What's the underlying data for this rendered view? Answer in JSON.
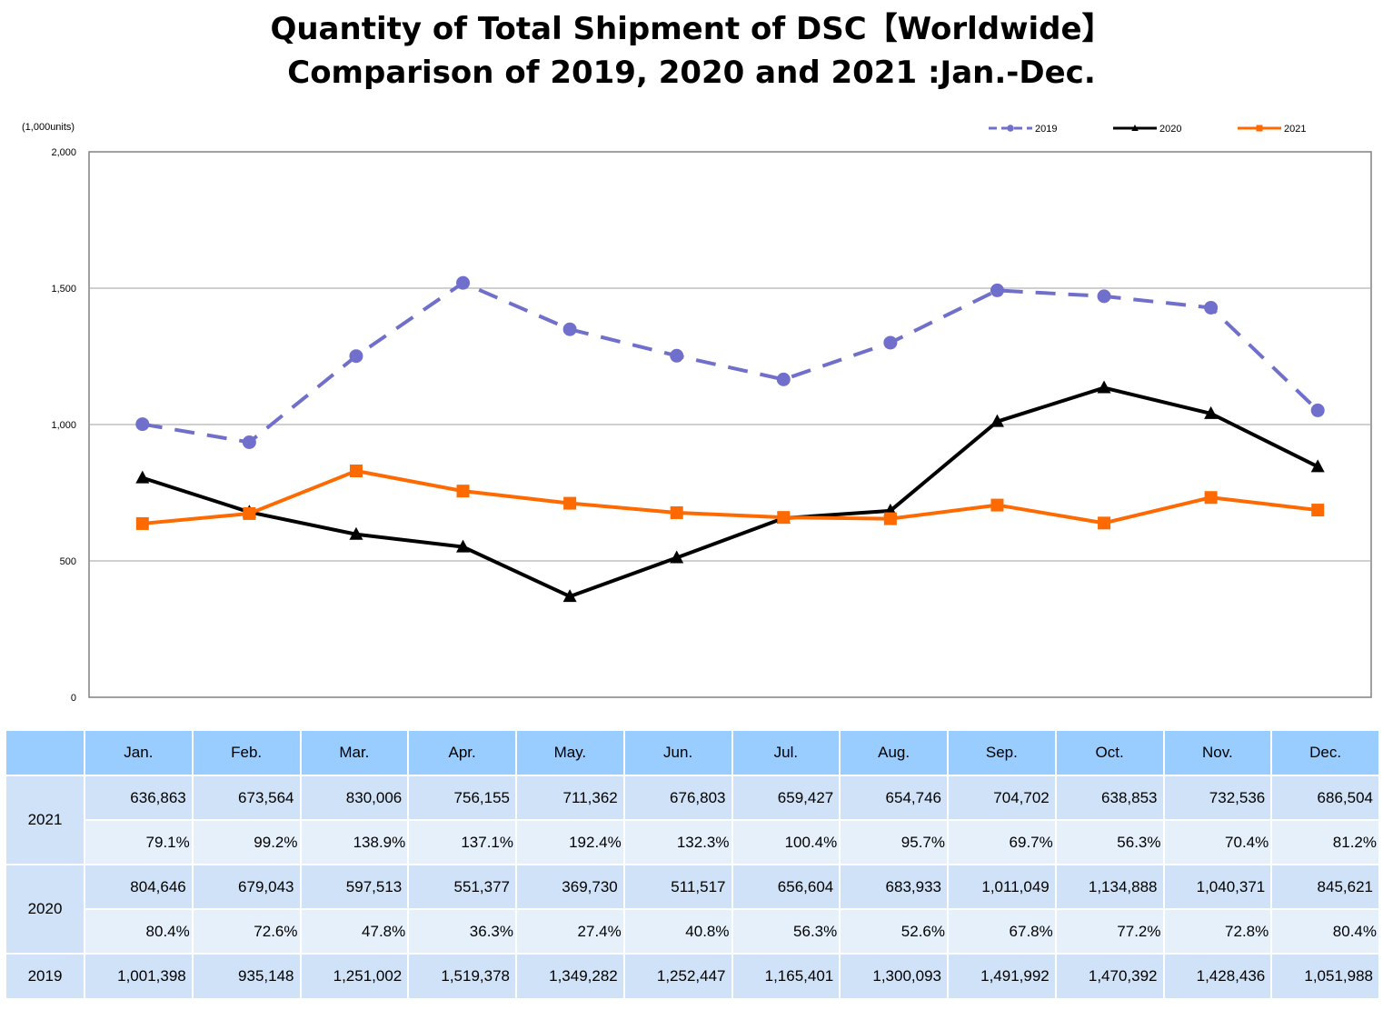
{
  "chart_data": {
    "type": "line",
    "title": [
      "Quantity of Total Shipment of DSC【Worldwide】",
      "Comparison of 2019, 2020 and 2021 :Jan.-Dec."
    ],
    "unit_label": "(1,000units)",
    "categories": [
      "Jan.",
      "Feb.",
      "Mar.",
      "Apr.",
      "May.",
      "Jun.",
      "Jul.",
      "Aug.",
      "Sep.",
      "Oct.",
      "Nov.",
      "Dec."
    ],
    "ylim": [
      0,
      2000
    ],
    "yticks": [
      0,
      500,
      1000,
      1500,
      2000
    ],
    "ytick_labels": [
      "0",
      "500",
      "1,000",
      "1,500",
      "2,000"
    ],
    "legend_position": "top-right",
    "grid": true,
    "series": [
      {
        "name": "2019",
        "color": "#7070cc",
        "style": "dashed",
        "marker": "circle",
        "values": [
          1001.398,
          935.148,
          1251.002,
          1519.378,
          1349.282,
          1252.447,
          1165.401,
          1300.093,
          1491.992,
          1470.392,
          1428.436,
          1051.988
        ]
      },
      {
        "name": "2020",
        "color": "#000000",
        "style": "solid",
        "marker": "triangle",
        "values": [
          804.646,
          679.043,
          597.513,
          551.377,
          369.73,
          511.517,
          656.604,
          683.933,
          1011.049,
          1134.888,
          1040.371,
          845.621
        ]
      },
      {
        "name": "2021",
        "color": "#ff6a00",
        "style": "solid",
        "marker": "square",
        "values": [
          636.863,
          673.564,
          830.006,
          756.155,
          711.362,
          676.803,
          659.427,
          654.746,
          704.702,
          638.853,
          732.536,
          686.504
        ]
      }
    ]
  },
  "table": {
    "months": [
      "Jan.",
      "Feb.",
      "Mar.",
      "Apr.",
      "May.",
      "Jun.",
      "Jul.",
      "Aug.",
      "Sep.",
      "Oct.",
      "Nov.",
      "Dec."
    ],
    "rows": [
      {
        "year": "2021",
        "values": [
          "636,863",
          "673,564",
          "830,006",
          "756,155",
          "711,362",
          "676,803",
          "659,427",
          "654,746",
          "704,702",
          "638,853",
          "732,536",
          "686,504"
        ],
        "percents": [
          "79.1%",
          "99.2%",
          "138.9%",
          "137.1%",
          "192.4%",
          "132.3%",
          "100.4%",
          "95.7%",
          "69.7%",
          "56.3%",
          "70.4%",
          "81.2%"
        ]
      },
      {
        "year": "2020",
        "values": [
          "804,646",
          "679,043",
          "597,513",
          "551,377",
          "369,730",
          "511,517",
          "656,604",
          "683,933",
          "1,011,049",
          "1,134,888",
          "1,040,371",
          "845,621"
        ],
        "percents": [
          "80.4%",
          "72.6%",
          "47.8%",
          "36.3%",
          "27.4%",
          "40.8%",
          "56.3%",
          "52.6%",
          "67.8%",
          "77.2%",
          "72.8%",
          "80.4%"
        ]
      },
      {
        "year": "2019",
        "values": [
          "1,001,398",
          "935,148",
          "1,251,002",
          "1,519,378",
          "1,349,282",
          "1,252,447",
          "1,165,401",
          "1,300,093",
          "1,491,992",
          "1,470,392",
          "1,428,436",
          "1,051,988"
        ]
      }
    ]
  }
}
